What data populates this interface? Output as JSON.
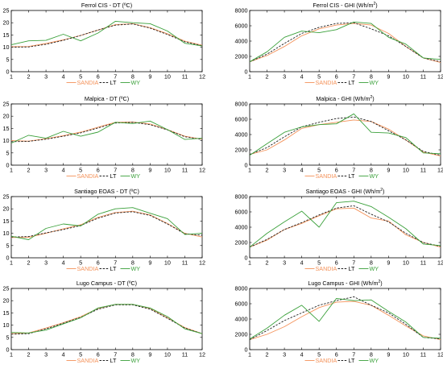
{
  "legend_labels": [
    "SANDIA",
    "LT",
    "WY"
  ],
  "colors": {
    "SANDIA": "#f4925a",
    "LT": "#222222",
    "WY": "#3aa03a"
  },
  "chart_data": [
    {
      "type": "line",
      "title": "Ferrol CIS - DT (ºC)",
      "x": [
        1,
        2,
        3,
        4,
        5,
        6,
        7,
        8,
        9,
        10,
        11,
        12
      ],
      "ylim": [
        0,
        25
      ],
      "yticks": [
        0,
        5,
        10,
        15,
        20,
        25
      ],
      "xticks": [
        1,
        2,
        3,
        4,
        5,
        6,
        7,
        8,
        9,
        10,
        11,
        12
      ],
      "legend": "bottom",
      "series": [
        {
          "name": "SANDIA",
          "values": [
            10.2,
            10.3,
            11.5,
            13.0,
            14.8,
            17.0,
            19.2,
            19.6,
            18.0,
            15.5,
            12.5,
            10.8
          ]
        },
        {
          "name": "LT",
          "values": [
            10.0,
            10.1,
            11.2,
            12.8,
            14.8,
            17.0,
            19.0,
            19.5,
            17.8,
            15.2,
            12.2,
            10.6
          ]
        },
        {
          "name": "WY",
          "values": [
            11.0,
            12.6,
            12.8,
            15.3,
            12.6,
            15.8,
            20.6,
            20.0,
            19.6,
            16.6,
            11.6,
            10.5
          ]
        }
      ]
    },
    {
      "type": "line",
      "title": "Ferrol CIS - GHI (Wh/m²)",
      "x": [
        1,
        2,
        3,
        4,
        5,
        6,
        7,
        8,
        9,
        10,
        11,
        12
      ],
      "ylim": [
        0,
        8000
      ],
      "yticks": [
        0,
        2000,
        4000,
        6000,
        8000
      ],
      "xticks": [
        1,
        2,
        3,
        4,
        5,
        6,
        7,
        8,
        9,
        10,
        11,
        12
      ],
      "legend": "bottom",
      "series": [
        {
          "name": "SANDIA",
          "values": [
            1300,
            2100,
            3300,
            4700,
            5600,
            6100,
            6300,
            6100,
            5000,
            3300,
            1800,
            1200
          ]
        },
        {
          "name": "LT",
          "values": [
            1300,
            2300,
            3700,
            5000,
            5800,
            6300,
            6400,
            5600,
            4700,
            3300,
            1800,
            1300
          ]
        },
        {
          "name": "WY",
          "values": [
            1300,
            2600,
            4500,
            5300,
            5100,
            5500,
            6500,
            6300,
            4500,
            3600,
            1800,
            1600
          ]
        }
      ]
    },
    {
      "type": "line",
      "title": "Malpica - DT (ºC)",
      "x": [
        1,
        2,
        3,
        4,
        5,
        6,
        7,
        8,
        9,
        10,
        11,
        12
      ],
      "ylim": [
        0,
        25
      ],
      "yticks": [
        0,
        5,
        10,
        15,
        20,
        25
      ],
      "xticks": [
        1,
        2,
        3,
        4,
        5,
        6,
        7,
        8,
        9,
        10,
        11,
        12
      ],
      "legend": "bottom",
      "series": [
        {
          "name": "SANDIA",
          "values": [
            10.0,
            9.8,
            10.8,
            12.0,
            13.5,
            15.5,
            17.5,
            17.6,
            16.8,
            14.5,
            11.8,
            10.6
          ]
        },
        {
          "name": "LT",
          "values": [
            9.6,
            9.7,
            10.6,
            11.8,
            13.2,
            15.2,
            17.2,
            17.5,
            16.5,
            14.4,
            11.6,
            10.5
          ]
        },
        {
          "name": "WY",
          "values": [
            9.0,
            12.2,
            11.0,
            13.8,
            11.8,
            13.5,
            17.5,
            17.0,
            18.0,
            14.5,
            10.5,
            11.0
          ]
        }
      ]
    },
    {
      "type": "line",
      "title": "Malpica - GHI (Wh/m²)",
      "x": [
        1,
        2,
        3,
        4,
        5,
        6,
        7,
        8,
        9,
        10,
        11,
        12
      ],
      "ylim": [
        0,
        8000
      ],
      "yticks": [
        0,
        2000,
        4000,
        6000,
        8000
      ],
      "xticks": [
        1,
        2,
        3,
        4,
        5,
        6,
        7,
        8,
        9,
        10,
        11,
        12
      ],
      "legend": "bottom",
      "series": [
        {
          "name": "SANDIA",
          "values": [
            1400,
            2000,
            3300,
            4800,
            5300,
            5600,
            5900,
            5700,
            4700,
            3300,
            1700,
            1200
          ]
        },
        {
          "name": "LT",
          "values": [
            1400,
            2300,
            3700,
            5000,
            5600,
            6100,
            6300,
            5700,
            4500,
            3300,
            1800,
            1300
          ]
        },
        {
          "name": "WY",
          "values": [
            1300,
            2800,
            4300,
            5000,
            5300,
            5400,
            6700,
            4300,
            4200,
            3600,
            1600,
            1500
          ]
        }
      ]
    },
    {
      "type": "line",
      "title": "Santiago EOAS - DT (ºC)",
      "x": [
        1,
        2,
        3,
        4,
        5,
        6,
        7,
        8,
        9,
        10,
        11,
        12
      ],
      "ylim": [
        0,
        25
      ],
      "yticks": [
        0,
        5,
        10,
        15,
        20,
        25
      ],
      "xticks": [
        1,
        2,
        3,
        4,
        5,
        6,
        7,
        8,
        9,
        10,
        11,
        12
      ],
      "legend": "bottom",
      "series": [
        {
          "name": "SANDIA",
          "values": [
            8.3,
            8.4,
            10.0,
            11.8,
            13.5,
            16.5,
            18.5,
            19.0,
            17.5,
            14.0,
            10.0,
            8.5
          ]
        },
        {
          "name": "LT",
          "values": [
            8.5,
            8.7,
            10.2,
            11.5,
            13.2,
            16.2,
            18.3,
            18.8,
            17.3,
            13.8,
            9.8,
            9.2
          ]
        },
        {
          "name": "WY",
          "values": [
            8.8,
            7.4,
            12.0,
            13.8,
            13.0,
            17.8,
            20.0,
            20.5,
            18.2,
            16.0,
            9.5,
            10.0
          ]
        }
      ]
    },
    {
      "type": "line",
      "title": "Santiago EOAS - GHI (Wh/m²)",
      "x": [
        1,
        2,
        3,
        4,
        5,
        6,
        7,
        8,
        9,
        10,
        11,
        12
      ],
      "ylim": [
        0,
        8000
      ],
      "yticks": [
        0,
        2000,
        4000,
        6000,
        8000
      ],
      "xticks": [
        1,
        2,
        3,
        4,
        5,
        6,
        7,
        8,
        9,
        10,
        11,
        12
      ],
      "legend": "bottom",
      "series": [
        {
          "name": "SANDIA",
          "values": [
            1400,
            2300,
            3700,
            4500,
            5500,
            6400,
            6500,
            5200,
            4800,
            3000,
            2000,
            1400
          ]
        },
        {
          "name": "LT",
          "values": [
            1400,
            2400,
            3700,
            4600,
            5600,
            6500,
            6800,
            5700,
            4700,
            3200,
            2000,
            1500
          ]
        },
        {
          "name": "WY",
          "values": [
            1400,
            3200,
            4700,
            6100,
            4000,
            7200,
            7400,
            6700,
            5300,
            3800,
            1800,
            1600
          ]
        }
      ]
    },
    {
      "type": "line",
      "title": "Lugo Campus - DT (ºC)",
      "x": [
        1,
        2,
        3,
        4,
        5,
        6,
        7,
        8,
        9,
        10,
        11,
        12
      ],
      "ylim": [
        0,
        25
      ],
      "yticks": [
        0,
        5,
        10,
        15,
        20,
        25
      ],
      "xticks": [
        1,
        2,
        3,
        4,
        5,
        6,
        7,
        8,
        9,
        10,
        11,
        12
      ],
      "legend": "bottom",
      "series": [
        {
          "name": "SANDIA",
          "values": [
            6.5,
            6.8,
            8.8,
            11.0,
            13.5,
            16.8,
            18.5,
            18.5,
            16.8,
            13.0,
            9.0,
            6.5
          ]
        },
        {
          "name": "LT",
          "values": [
            6.3,
            6.5,
            8.5,
            10.8,
            13.2,
            16.5,
            18.3,
            18.3,
            16.5,
            12.8,
            8.8,
            6.5
          ]
        },
        {
          "name": "WY",
          "values": [
            7.0,
            6.8,
            8.0,
            10.5,
            13.0,
            17.0,
            18.5,
            18.5,
            17.0,
            13.5,
            8.5,
            6.5
          ]
        }
      ]
    },
    {
      "type": "line",
      "title": "Lugo Campus - GHI (Wh/m²)",
      "x": [
        1,
        2,
        3,
        4,
        5,
        6,
        7,
        8,
        9,
        10,
        11,
        12
      ],
      "ylim": [
        0,
        8000
      ],
      "yticks": [
        0,
        2000,
        4000,
        6000,
        8000
      ],
      "xticks": [
        1,
        2,
        3,
        4,
        5,
        6,
        7,
        8,
        9,
        10,
        11,
        12
      ],
      "legend": "bottom",
      "series": [
        {
          "name": "SANDIA",
          "values": [
            1300,
            2000,
            3000,
            4300,
            5500,
            6200,
            6300,
            5800,
            4500,
            3100,
            1800,
            1300
          ]
        },
        {
          "name": "LT",
          "values": [
            1300,
            2500,
            3800,
            4800,
            5800,
            6400,
            6900,
            5800,
            4800,
            3300,
            1600,
            1400
          ]
        },
        {
          "name": "WY",
          "values": [
            1400,
            2800,
            4500,
            5800,
            3700,
            6700,
            6400,
            6500,
            5000,
            3600,
            1600,
            1500
          ]
        }
      ]
    }
  ]
}
